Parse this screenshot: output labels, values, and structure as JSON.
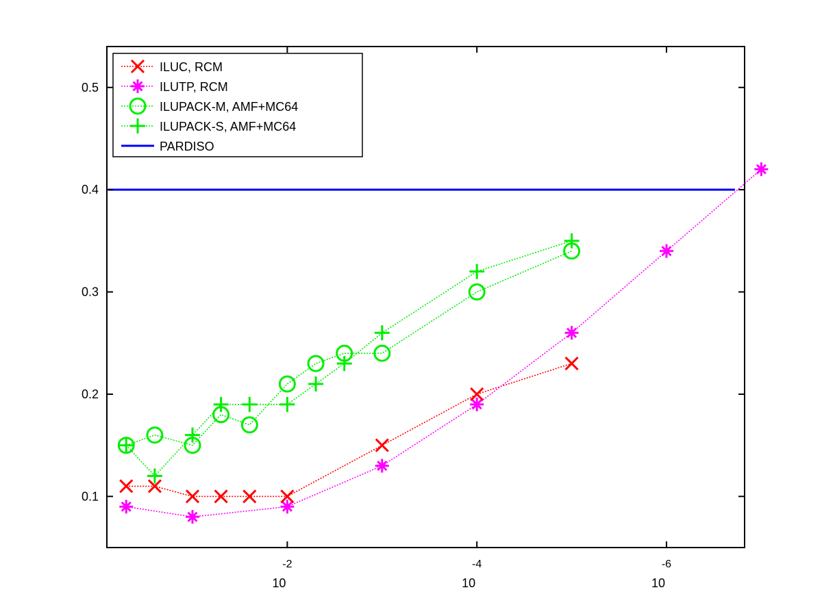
{
  "chart_data": {
    "type": "line",
    "title": "",
    "xlabel": "",
    "ylabel": "",
    "x_scale": "log",
    "x_direction": "decreasing",
    "xlim": [
      0.8,
      1.5e-07
    ],
    "ylim": [
      0.05,
      0.54
    ],
    "grid": false,
    "legend_position": "top-left",
    "x_ticks": [
      {
        "value": 0.01,
        "base": "10",
        "exp": "-2"
      },
      {
        "value": 0.0001,
        "base": "10",
        "exp": "-4"
      },
      {
        "value": 1e-06,
        "base": "10",
        "exp": "-6"
      }
    ],
    "y_ticks": [
      {
        "value": 0.1,
        "label": "0.1"
      },
      {
        "value": 0.2,
        "label": "0.2"
      },
      {
        "value": 0.3,
        "label": "0.3"
      },
      {
        "value": 0.4,
        "label": "0.4"
      },
      {
        "value": 0.5,
        "label": "0.5"
      }
    ],
    "series": [
      {
        "name": "ILUC, RCM",
        "color": "#ff0000",
        "marker": "x",
        "line": "dotted",
        "points": [
          [
            0.5,
            0.11
          ],
          [
            0.25,
            0.11
          ],
          [
            0.1,
            0.1
          ],
          [
            0.05,
            0.1
          ],
          [
            0.025,
            0.1
          ],
          [
            0.01,
            0.1
          ],
          [
            0.001,
            0.15
          ],
          [
            0.0001,
            0.2
          ],
          [
            1e-05,
            0.23
          ]
        ]
      },
      {
        "name": "ILUTP, RCM",
        "color": "#ff00ff",
        "marker": "asterisk",
        "line": "dotted",
        "points": [
          [
            0.5,
            0.09
          ],
          [
            0.1,
            0.08
          ],
          [
            0.01,
            0.09
          ],
          [
            0.001,
            0.13
          ],
          [
            0.0001,
            0.19
          ],
          [
            1e-05,
            0.26
          ],
          [
            1e-06,
            0.34
          ],
          [
            1e-07,
            0.42
          ]
        ]
      },
      {
        "name": "ILUPACK-M, AMF+MC64",
        "color": "#00ee00",
        "marker": "circle",
        "line": "dotted",
        "points": [
          [
            0.5,
            0.15
          ],
          [
            0.25,
            0.16
          ],
          [
            0.1,
            0.15
          ],
          [
            0.05,
            0.18
          ],
          [
            0.025,
            0.17
          ],
          [
            0.01,
            0.21
          ],
          [
            0.005,
            0.23
          ],
          [
            0.0025,
            0.24
          ],
          [
            0.001,
            0.24
          ],
          [
            0.0001,
            0.3
          ],
          [
            1e-05,
            0.34
          ]
        ]
      },
      {
        "name": "ILUPACK-S, AMF+MC64",
        "color": "#00ee00",
        "marker": "plus",
        "line": "dotted",
        "points": [
          [
            0.5,
            0.15
          ],
          [
            0.25,
            0.12
          ],
          [
            0.1,
            0.16
          ],
          [
            0.05,
            0.19
          ],
          [
            0.025,
            0.19
          ],
          [
            0.01,
            0.19
          ],
          [
            0.005,
            0.21
          ],
          [
            0.0025,
            0.23
          ],
          [
            0.001,
            0.26
          ],
          [
            0.0001,
            0.32
          ],
          [
            1e-05,
            0.35
          ]
        ]
      },
      {
        "name": "PARDISO",
        "color": "#0000ff",
        "marker": "none",
        "line": "solid",
        "hline": 0.4
      }
    ]
  }
}
